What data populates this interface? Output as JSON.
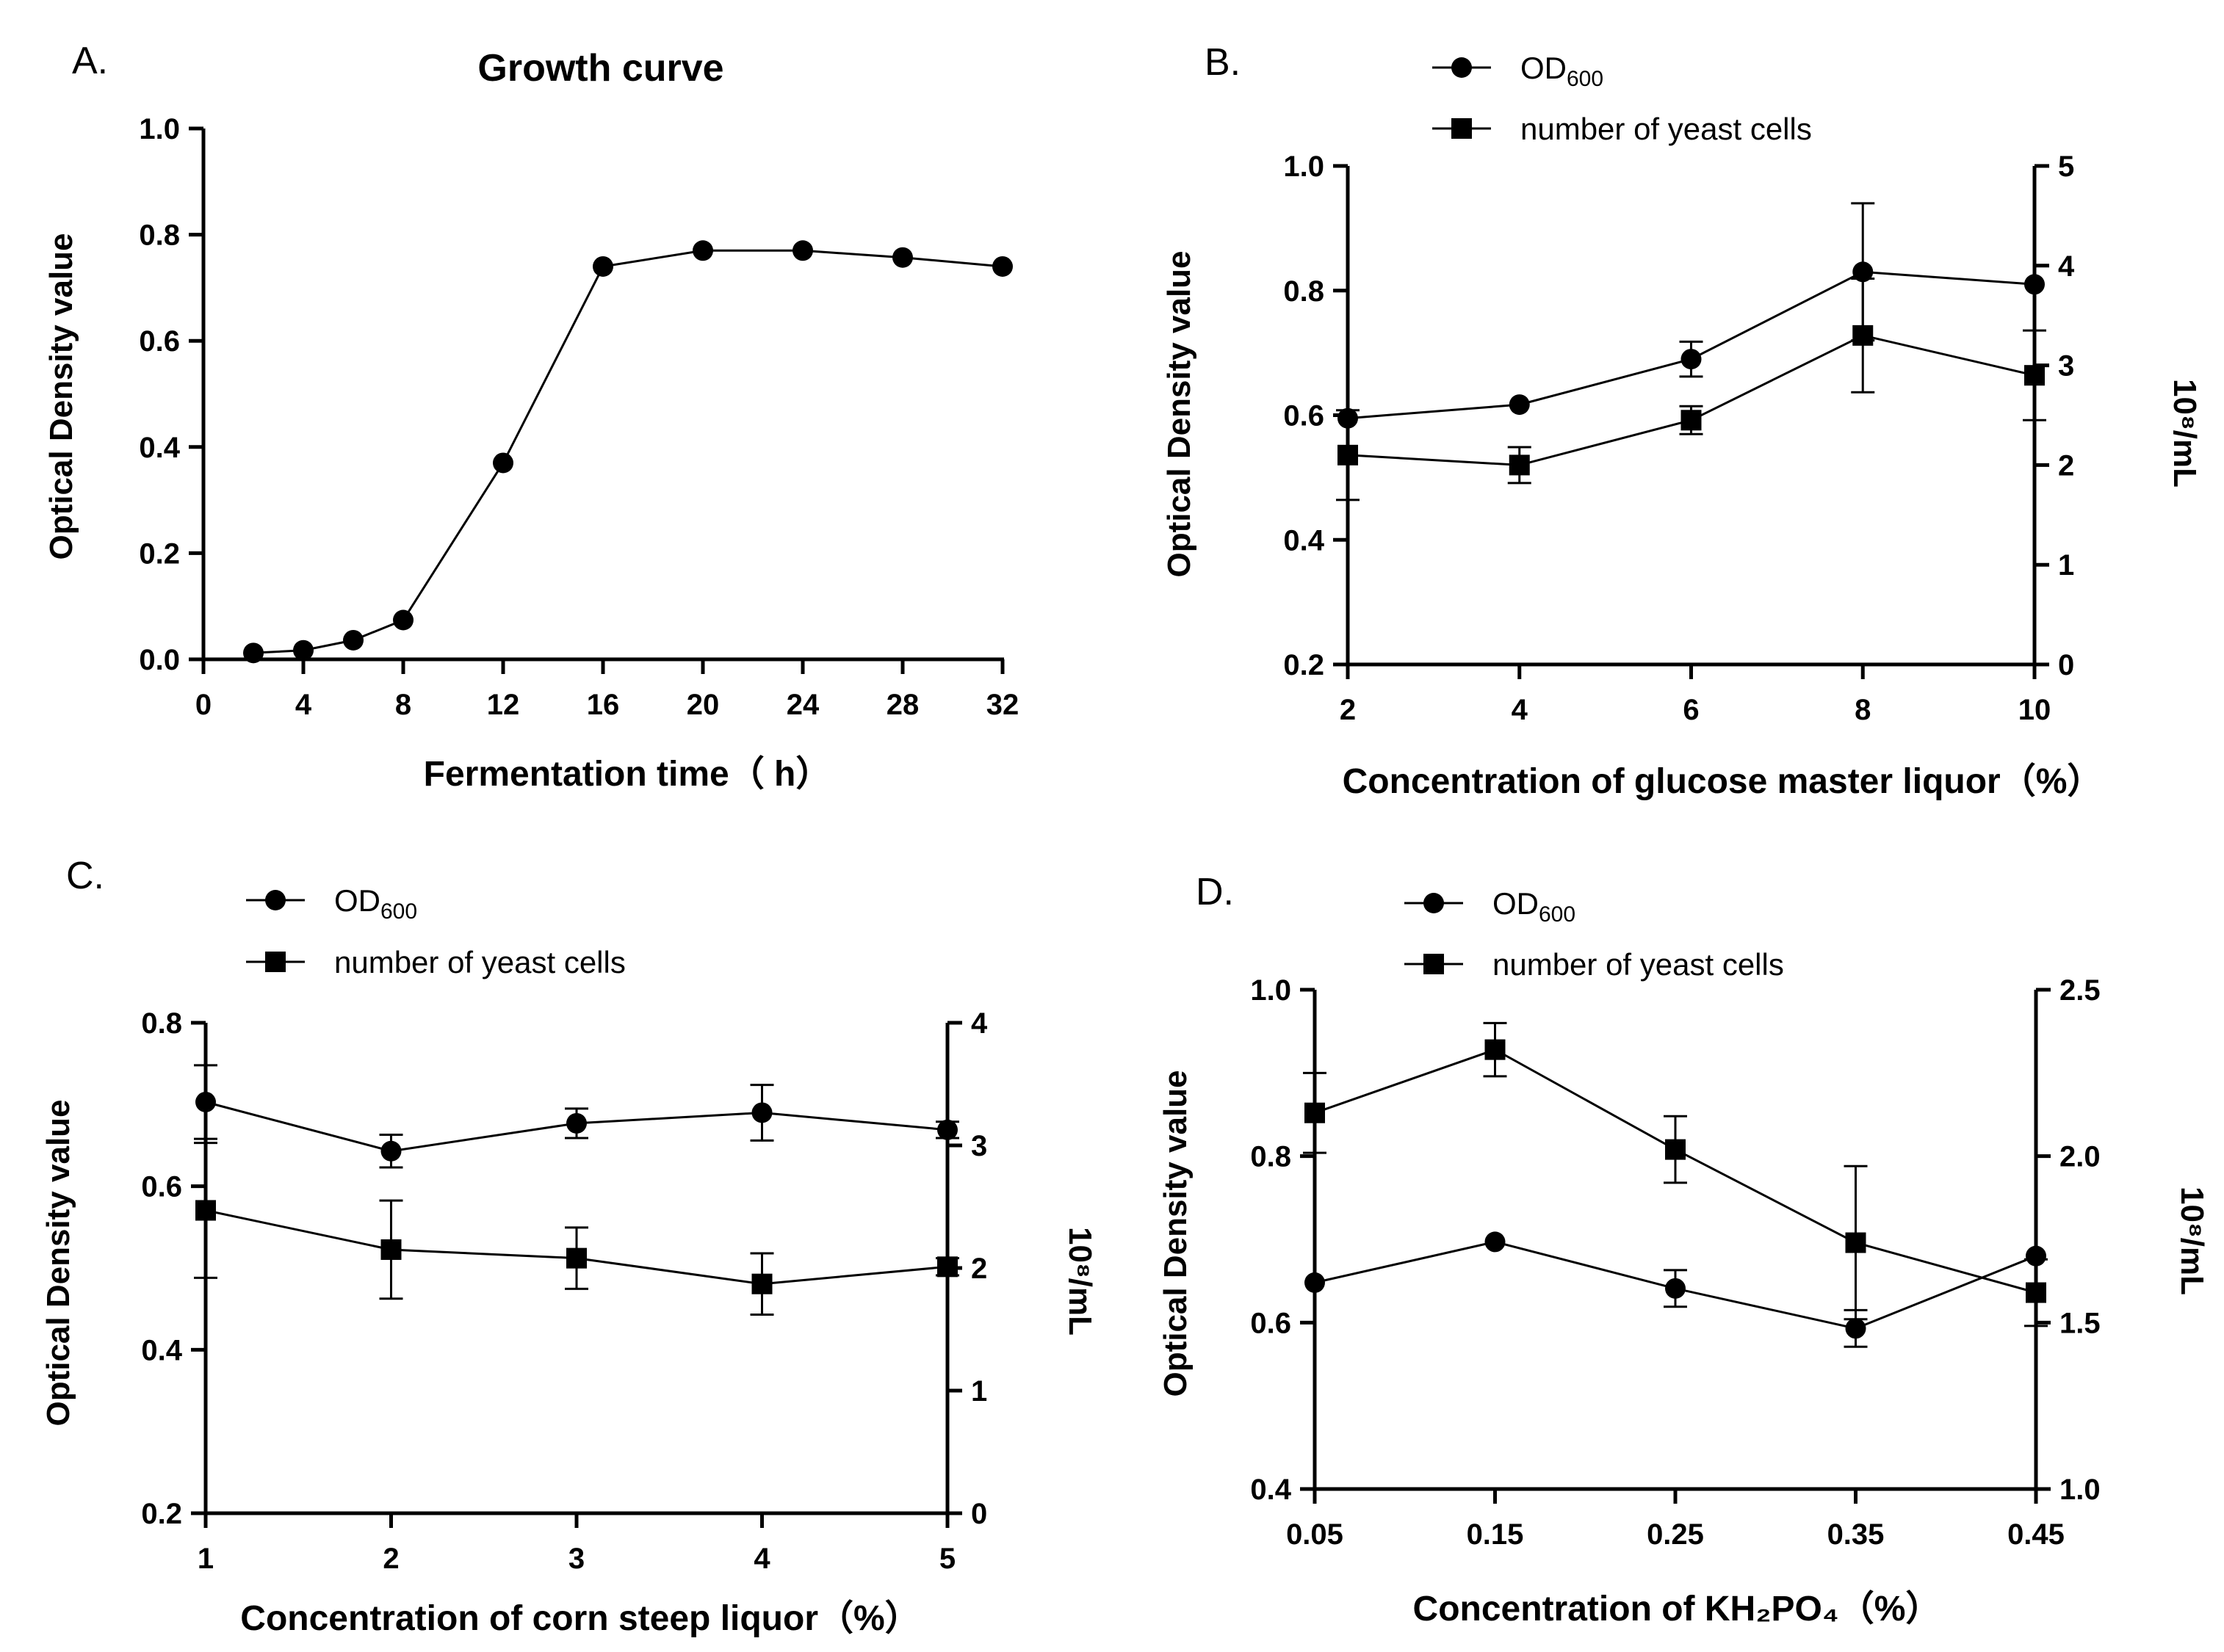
{
  "chart_data": [
    {
      "panel": "A.",
      "type": "line",
      "title": "Growth curve",
      "xlabel": "Fermentation time（ h）",
      "ylabel": "Optical Density value",
      "xlim": [
        0,
        32
      ],
      "ylim": [
        0,
        1.0
      ],
      "x_ticks": [
        "0",
        "4",
        "8",
        "12",
        "16",
        "20",
        "24",
        "28",
        "32"
      ],
      "y_ticks": [
        "0.0",
        "0.2",
        "0.4",
        "0.6",
        "0.8",
        "1.0"
      ],
      "series": [
        {
          "name": "OD600",
          "marker": "circle",
          "x": [
            2,
            4,
            6,
            8,
            12,
            16,
            20,
            24,
            28,
            32
          ],
          "values": [
            0.012,
            0.017,
            0.036,
            0.074,
            0.37,
            0.74,
            0.77,
            0.77,
            0.757,
            0.74
          ]
        }
      ]
    },
    {
      "panel": "B.",
      "type": "line",
      "xlabel": "Concentration of glucose master liquor（%）",
      "ylabel": "Optical Density value",
      "y2label": "10⁸/mL",
      "xlim": [
        2,
        10
      ],
      "ylim": [
        0.2,
        1.0
      ],
      "y2lim": [
        0,
        5
      ],
      "x_ticks": [
        "2",
        "4",
        "6",
        "8",
        "10"
      ],
      "y_ticks": [
        "0.2",
        "0.4",
        "0.6",
        "0.8",
        "1.0"
      ],
      "y2_ticks": [
        "0",
        "1",
        "2",
        "3",
        "4",
        "5"
      ],
      "legend": [
        "OD600",
        "number of yeast cells"
      ],
      "series": [
        {
          "name": "OD600",
          "axis": "left",
          "marker": "circle",
          "x": [
            2,
            4,
            6,
            8,
            10
          ],
          "values": [
            0.595,
            0.617,
            0.69,
            0.83,
            0.81
          ],
          "errors": [
            0.0,
            0.0,
            0.028,
            0.11,
            0.0
          ]
        },
        {
          "name": "number of yeast cells",
          "axis": "right",
          "marker": "square",
          "x": [
            2,
            4,
            6,
            8,
            10
          ],
          "values": [
            2.1,
            2.0,
            2.45,
            3.3,
            2.9
          ],
          "errors": [
            0.45,
            0.18,
            0.14,
            0.57,
            0.45
          ]
        }
      ]
    },
    {
      "panel": "C.",
      "type": "line",
      "xlabel": "Concentration of corn steep liquor（%）",
      "ylabel": "Optical Density value",
      "y2label": "10⁸/mL",
      "xlim": [
        1,
        5
      ],
      "ylim": [
        0.2,
        0.8
      ],
      "y2lim": [
        0,
        4
      ],
      "x_ticks": [
        "1",
        "2",
        "3",
        "4",
        "5"
      ],
      "y_ticks": [
        "0.2",
        "0.4",
        "0.6",
        "0.8"
      ],
      "y2_ticks": [
        "0",
        "1",
        "2",
        "3",
        "4"
      ],
      "legend": [
        "OD600",
        "number of yeast cells"
      ],
      "series": [
        {
          "name": "OD600",
          "axis": "left",
          "marker": "circle",
          "x": [
            1,
            2,
            3,
            4,
            5
          ],
          "values": [
            0.703,
            0.643,
            0.677,
            0.69,
            0.669
          ],
          "errors": [
            0.045,
            0.02,
            0.018,
            0.034,
            0.01
          ]
        },
        {
          "name": "number of yeast cells",
          "axis": "right",
          "marker": "square",
          "x": [
            1,
            2,
            3,
            4,
            5
          ],
          "values": [
            2.47,
            2.15,
            2.08,
            1.87,
            2.01
          ],
          "errors": [
            0.55,
            0.4,
            0.25,
            0.25,
            0.07
          ]
        }
      ]
    },
    {
      "panel": "D.",
      "type": "line",
      "xlabel": "Concentration of KH₂PO₄（%）",
      "ylabel": "Optical Density value",
      "y2label": "10⁸/mL",
      "xlim": [
        0.05,
        0.45
      ],
      "ylim": [
        0.4,
        1.0
      ],
      "y2lim": [
        1.0,
        2.5
      ],
      "x_ticks": [
        "0.05",
        "0.15",
        "0.25",
        "0.35",
        "0.45"
      ],
      "y_ticks": [
        "0.4",
        "0.6",
        "0.8",
        "1.0"
      ],
      "y2_ticks": [
        "1.0",
        "1.5",
        "2.0",
        "2.5"
      ],
      "legend": [
        "OD600",
        "number of yeast cells"
      ],
      "series": [
        {
          "name": "OD600",
          "axis": "left",
          "marker": "circle",
          "x": [
            0.05,
            0.15,
            0.25,
            0.35,
            0.45
          ],
          "values": [
            0.648,
            0.697,
            0.641,
            0.593,
            0.68
          ],
          "errors": [
            0.0,
            0.0,
            0.022,
            0.022,
            0.0
          ]
        },
        {
          "name": "number of yeast cells",
          "axis": "right",
          "marker": "square",
          "x": [
            0.05,
            0.15,
            0.25,
            0.35,
            0.45
          ],
          "values": [
            2.13,
            2.32,
            2.02,
            1.74,
            1.59
          ],
          "errors": [
            0.12,
            0.08,
            0.1,
            0.23,
            0.1
          ]
        }
      ]
    }
  ]
}
